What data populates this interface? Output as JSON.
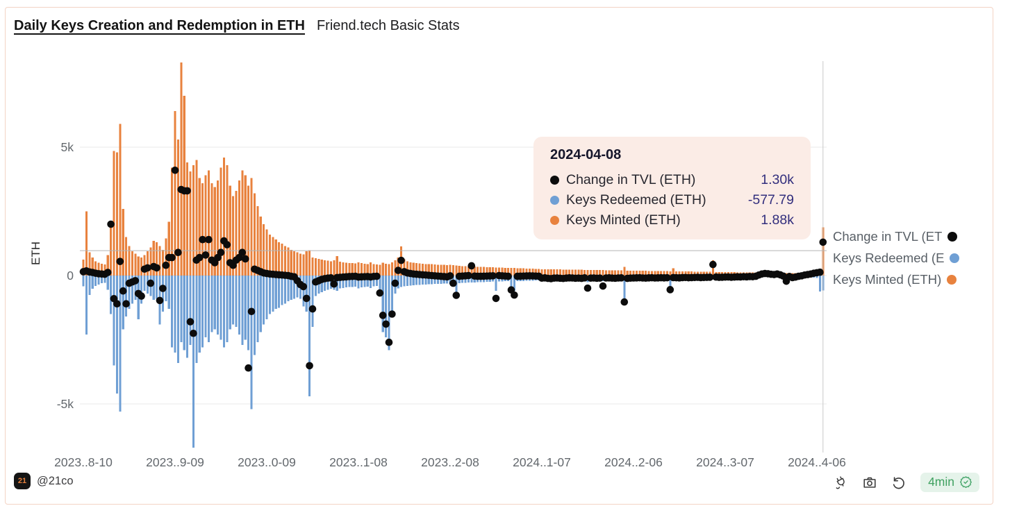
{
  "header": {
    "title": "Daily Keys Creation and Redemption in ETH",
    "subtitle": "Friend.tech Basic Stats"
  },
  "y_axis": {
    "label": "ETH",
    "ticks": [
      {
        "label": "5k",
        "value": 5000
      },
      {
        "label": "0",
        "value": 0
      },
      {
        "label": "-5k",
        "value": -5000
      }
    ]
  },
  "x_axis": {
    "ticks": [
      "2023..8-10",
      "2023..9-09",
      "2023..0-09",
      "2023..1-08",
      "2023..2-08",
      "2024..1-07",
      "2024..2-06",
      "2024..3-07",
      "2024..4-06"
    ],
    "tick_indices": [
      0,
      30,
      60,
      90,
      120,
      150,
      180,
      210,
      240
    ]
  },
  "tooltip": {
    "date": "2024-04-08",
    "rows": [
      {
        "label": "Change in TVL (ETH)",
        "value": "1.30k",
        "color": "#0c0c0c"
      },
      {
        "label": "Keys Redeemed (ETH)",
        "value": "-577.79",
        "color": "#6f9fd4"
      },
      {
        "label": "Keys Minted (ETH)",
        "value": "1.88k",
        "color": "#e8823e"
      }
    ]
  },
  "legend": {
    "items": [
      {
        "label": "Change in TVL (ET",
        "color": "#0c0c0c"
      },
      {
        "label": "Keys Redeemed (E",
        "color": "#6f9fd4"
      },
      {
        "label": "Keys Minted (ETH)",
        "color": "#e8823e"
      }
    ]
  },
  "footer": {
    "logo_text": "21",
    "handle": "@21co",
    "refresh_age": "4min"
  },
  "colors": {
    "minted": "#e8823e",
    "redeemed": "#6f9fd4",
    "tvl_dot": "#0c0c0c",
    "tooltip_bg": "#fbece6",
    "card_border": "#f3d3c4",
    "pill_bg": "#e5f3ea",
    "pill_text": "#3fa160"
  },
  "chart_data": {
    "type": "bar",
    "title": "Daily Keys Creation and Redemption in ETH",
    "subtitle": "Friend.tech Basic Stats",
    "ylabel": "ETH",
    "ylim": [
      -6800,
      8400
    ],
    "grid_values": [
      5000,
      0,
      -5000
    ],
    "legend_position": "right",
    "x": {
      "start_date": "2023-08-10",
      "end_date": "2024-04-08",
      "step_days": 1,
      "count": 243
    },
    "hover": {
      "date": "2024-04-08",
      "index": 242,
      "ref_hline_eth": 970
    },
    "series": [
      {
        "name": "Keys Minted (ETH)",
        "render": "bar",
        "color": "#e8823e",
        "values": [
          620,
          2500,
          900,
          700,
          560,
          500,
          460,
          430,
          800,
          2000,
          4850,
          4800,
          5900,
          2600,
          1500,
          1150,
          950,
          850,
          750,
          700,
          800,
          950,
          1100,
          1350,
          1300,
          1150,
          1000,
          1450,
          2100,
          4200,
          6400,
          5300,
          8300,
          7000,
          4400,
          4050,
          4300,
          4500,
          3800,
          3600,
          3900,
          4100,
          3600,
          3450,
          3700,
          4200,
          4600,
          4300,
          3500,
          3100,
          3300,
          3700,
          4100,
          3900,
          3500,
          3800,
          3200,
          2700,
          2300,
          2000,
          1800,
          1600,
          1500,
          1400,
          1300,
          1250,
          1150,
          1100,
          1000,
          950,
          900,
          850,
          820,
          950,
          980,
          700,
          680,
          650,
          620,
          600,
          580,
          560,
          600,
          760,
          540,
          520,
          500,
          490,
          480,
          470,
          520,
          480,
          460,
          450,
          520,
          440,
          430,
          420,
          500,
          460,
          450,
          520,
          600,
          700,
          1130,
          640,
          560,
          520,
          500,
          480,
          470,
          460,
          450,
          445,
          440,
          430,
          425,
          420,
          415,
          410,
          420,
          400,
          390,
          380,
          370,
          360,
          355,
          350,
          345,
          340,
          340,
          335,
          330,
          325,
          320,
          315,
          310,
          305,
          300,
          295,
          300,
          295,
          290,
          285,
          280,
          275,
          270,
          265,
          260,
          255,
          250,
          248,
          246,
          244,
          242,
          240,
          238,
          236,
          234,
          232,
          230,
          228,
          226,
          224,
          222,
          220,
          218,
          216,
          214,
          212,
          210,
          208,
          206,
          204,
          202,
          200,
          198,
          340,
          196,
          194,
          192,
          190,
          188,
          186,
          184,
          182,
          180,
          178,
          176,
          174,
          172,
          170,
          168,
          280,
          166,
          164,
          162,
          160,
          158,
          156,
          154,
          152,
          150,
          148,
          146,
          144,
          590,
          142,
          140,
          138,
          136,
          134,
          132,
          130,
          128,
          126,
          124,
          122,
          120,
          118,
          116,
          114,
          112,
          110,
          108,
          106,
          104,
          102,
          100,
          98,
          96,
          110,
          94,
          92,
          90,
          100,
          95,
          120,
          140,
          160,
          180,
          200,
          1880
        ]
      },
      {
        "name": "Keys Redeemed (ETH)",
        "render": "bar",
        "color": "#6f9fd4",
        "values": [
          -420,
          -2300,
          -750,
          -520,
          -400,
          -350,
          -300,
          -280,
          -550,
          -1500,
          -3500,
          -4600,
          -5300,
          -2100,
          -1600,
          -1300,
          -1100,
          -950,
          -1700,
          -1100,
          -600,
          -700,
          -800,
          -950,
          -900,
          -1900,
          -1400,
          -1000,
          -1300,
          -2800,
          -3000,
          -3400,
          -2600,
          -2900,
          -3200,
          -2700,
          -6700,
          -3400,
          -3000,
          -2800,
          -2400,
          -2600,
          -2200,
          -2100,
          -2300,
          -2500,
          -2800,
          -2600,
          -2100,
          -1900,
          -2000,
          -2300,
          -2700,
          -2500,
          -2900,
          -5200,
          -3100,
          -2600,
          -2200,
          -1900,
          -1700,
          -1500,
          -1400,
          -1300,
          -1250,
          -1150,
          -1100,
          -1000,
          -950,
          -900,
          -850,
          -900,
          -1200,
          -1400,
          -4700,
          -2000,
          -800,
          -700,
          -650,
          -600,
          -550,
          -520,
          -560,
          -600,
          -500,
          -480,
          -460,
          -450,
          -440,
          -430,
          -500,
          -460,
          -440,
          -430,
          -480,
          -420,
          -410,
          -700,
          -2200,
          -2400,
          -2900,
          -1600,
          -700,
          -500,
          -450,
          -420,
          -400,
          -390,
          -380,
          -370,
          -360,
          -350,
          -345,
          -340,
          -335,
          -330,
          -325,
          -320,
          -315,
          -310,
          -320,
          -400,
          -630,
          -300,
          -290,
          -280,
          -275,
          -270,
          -265,
          -260,
          -255,
          -250,
          -245,
          -240,
          -235,
          -600,
          -228,
          -225,
          -222,
          -220,
          -500,
          -600,
          -220,
          -215,
          -210,
          -205,
          -200,
          -198,
          -195,
          -192,
          -190,
          -188,
          -186,
          -184,
          -182,
          -180,
          -178,
          -176,
          -174,
          -172,
          -170,
          -168,
          -166,
          -164,
          -162,
          -260,
          -158,
          -156,
          -154,
          -152,
          -210,
          -148,
          -146,
          -144,
          -142,
          -140,
          -138,
          -890,
          -136,
          -134,
          -132,
          -130,
          -128,
          -126,
          -124,
          -122,
          -120,
          -118,
          -116,
          -114,
          -112,
          -110,
          -500,
          -108,
          -106,
          -104,
          -102,
          -100,
          -98,
          -96,
          -94,
          -92,
          -90,
          -88,
          -86,
          -84,
          -82,
          -80,
          -78,
          -76,
          -74,
          -72,
          -70,
          -68,
          -66,
          -64,
          -62,
          -60,
          -58,
          -56,
          -54,
          -52,
          -50,
          -48,
          -46,
          -44,
          -42,
          -40,
          -38,
          -36,
          -120,
          -34,
          -60,
          -40,
          -38,
          -36,
          -34,
          -60,
          -70,
          -80,
          -90,
          -620,
          -577.79
        ]
      },
      {
        "name": "Change in TVL (ETH)",
        "render": "scatter",
        "color": "#0c0c0c",
        "values": [
          150,
          180,
          140,
          120,
          90,
          70,
          60,
          50,
          120,
          2000,
          -900,
          -1100,
          550,
          -600,
          -1100,
          -300,
          -250,
          -200,
          -700,
          -800,
          250,
          300,
          -300,
          350,
          300,
          -970,
          -500,
          400,
          700,
          700,
          4100,
          900,
          3350,
          3300,
          3300,
          -1800,
          -2250,
          600,
          700,
          1400,
          800,
          1400,
          600,
          500,
          700,
          900,
          1350,
          1200,
          500,
          400,
          600,
          700,
          900,
          650,
          -3600,
          -1400,
          250,
          200,
          150,
          100,
          80,
          60,
          50,
          40,
          30,
          20,
          10,
          0,
          -30,
          -50,
          -200,
          -350,
          -430,
          -890,
          -3510,
          -1300,
          -250,
          -200,
          -150,
          -120,
          -100,
          -90,
          -330,
          -80,
          -70,
          -60,
          -50,
          -40,
          -35,
          -30,
          -60,
          -50,
          -45,
          -40,
          -55,
          -35,
          -30,
          -680,
          -1550,
          -1890,
          -2600,
          -1500,
          -300,
          200,
          590,
          150,
          100,
          80,
          60,
          50,
          40,
          30,
          20,
          10,
          0,
          -10,
          -20,
          -30,
          -40,
          -50,
          -10,
          -300,
          -770,
          -30,
          -20,
          -10,
          0,
          380,
          -20,
          -30,
          -30,
          -25,
          -20,
          -15,
          -10,
          -890,
          0,
          -10,
          -20,
          -30,
          -560,
          -760,
          -30,
          -25,
          -20,
          -15,
          -10,
          -15,
          -20,
          -25,
          -100,
          -90,
          -110,
          -120,
          -100,
          -95,
          -105,
          -115,
          -100,
          -90,
          -95,
          -105,
          -100,
          -110,
          -90,
          -490,
          -100,
          -95,
          -105,
          -100,
          -410,
          -95,
          -90,
          -100,
          -105,
          -95,
          -90,
          -1030,
          -110,
          -100,
          -95,
          -90,
          -85,
          -95,
          -100,
          -90,
          -85,
          -95,
          -90,
          -85,
          -90,
          -85,
          -550,
          -80,
          -85,
          -90,
          -80,
          -75,
          -85,
          -80,
          -75,
          -70,
          -80,
          -75,
          -70,
          -65,
          430,
          -60,
          -70,
          -65,
          -60,
          -55,
          -65,
          -60,
          -50,
          -55,
          -45,
          -50,
          -40,
          -45,
          -30,
          20,
          60,
          80,
          70,
          50,
          40,
          60,
          30,
          -20,
          -220,
          -40,
          -80,
          -60,
          -30,
          -10,
          20,
          40,
          60,
          90,
          110,
          130,
          1300
        ]
      }
    ]
  }
}
